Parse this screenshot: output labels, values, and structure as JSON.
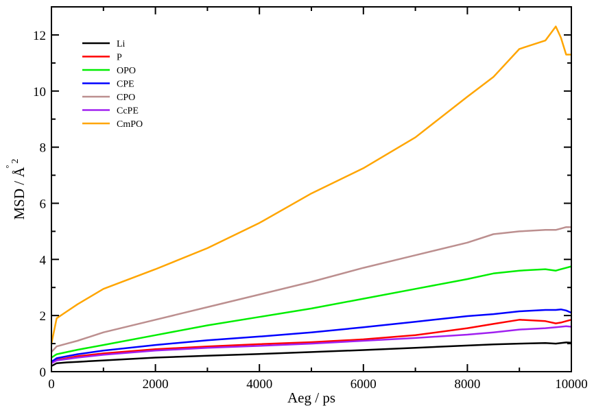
{
  "chart_data": {
    "type": "line",
    "title": "",
    "xlabel": "Aeg / ps",
    "ylabel": "MSD / Å²",
    "ylabel_main": "MSD / ",
    "ylabel_unit": "Å",
    "ylabel_ring": "°",
    "ylabel_exp": "2",
    "xlim": [
      0,
      10000
    ],
    "ylim": [
      0,
      13
    ],
    "x_ticks": [
      0,
      2000,
      4000,
      6000,
      8000,
      10000
    ],
    "y_ticks": [
      0,
      2,
      4,
      6,
      8,
      10,
      12
    ],
    "x_tick_labels": [
      "0",
      "2000",
      "4000",
      "6000",
      "8000",
      "10000"
    ],
    "y_tick_labels": [
      "0",
      "2",
      "4",
      "6",
      "8",
      "10",
      "12"
    ],
    "grid": false,
    "legend_position": "top-left",
    "x": [
      0,
      100,
      300,
      500,
      1000,
      2000,
      3000,
      4000,
      5000,
      6000,
      7000,
      8000,
      8500,
      9000,
      9500,
      9700,
      9800,
      9900,
      10000
    ],
    "series": [
      {
        "name": "Li",
        "color": "#000000",
        "values": [
          0.2,
          0.3,
          0.33,
          0.35,
          0.4,
          0.5,
          0.57,
          0.63,
          0.7,
          0.77,
          0.85,
          0.93,
          0.97,
          1.0,
          1.02,
          1.0,
          1.02,
          1.04,
          1.03
        ]
      },
      {
        "name": "P",
        "color": "#ff0000",
        "values": [
          0.3,
          0.42,
          0.48,
          0.55,
          0.65,
          0.8,
          0.9,
          0.98,
          1.05,
          1.15,
          1.3,
          1.55,
          1.7,
          1.85,
          1.8,
          1.72,
          1.75,
          1.8,
          1.85
        ]
      },
      {
        "name": "OPO",
        "color": "#00ee00",
        "values": [
          0.5,
          0.62,
          0.7,
          0.78,
          0.95,
          1.3,
          1.65,
          1.95,
          2.25,
          2.6,
          2.95,
          3.3,
          3.5,
          3.6,
          3.65,
          3.6,
          3.65,
          3.7,
          3.75
        ]
      },
      {
        "name": "CPE",
        "color": "#0000ff",
        "values": [
          0.35,
          0.48,
          0.55,
          0.62,
          0.75,
          0.95,
          1.12,
          1.25,
          1.4,
          1.58,
          1.78,
          1.98,
          2.05,
          2.15,
          2.2,
          2.2,
          2.22,
          2.18,
          2.1
        ]
      },
      {
        "name": "CPO",
        "color": "#bc8f8f",
        "values": [
          0.7,
          0.9,
          1.0,
          1.1,
          1.4,
          1.85,
          2.3,
          2.75,
          3.2,
          3.7,
          4.15,
          4.6,
          4.9,
          5.0,
          5.05,
          5.05,
          5.1,
          5.15,
          5.15
        ]
      },
      {
        "name": "CcPE",
        "color": "#a020f0",
        "values": [
          0.3,
          0.4,
          0.45,
          0.5,
          0.6,
          0.75,
          0.85,
          0.92,
          1.0,
          1.1,
          1.2,
          1.32,
          1.4,
          1.5,
          1.55,
          1.58,
          1.6,
          1.62,
          1.6
        ]
      },
      {
        "name": "CmPO",
        "color": "#ffa500",
        "values": [
          1.0,
          1.9,
          2.15,
          2.4,
          2.95,
          3.65,
          4.4,
          5.3,
          6.35,
          7.25,
          8.35,
          9.8,
          10.5,
          11.5,
          11.8,
          12.3,
          11.9,
          11.3,
          11.3
        ]
      }
    ]
  }
}
